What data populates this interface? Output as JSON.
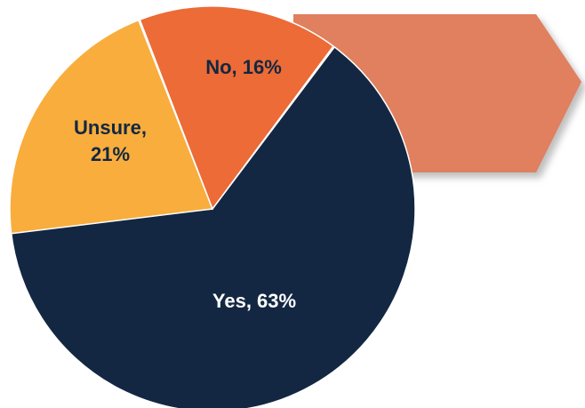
{
  "chart_data": {
    "type": "pie",
    "title": "",
    "slices": [
      {
        "label": "Yes",
        "value": 63,
        "display": [
          "Yes, 63%"
        ],
        "color": "#132742",
        "text_color": "#ffffff"
      },
      {
        "label": "Unsure",
        "value": 21,
        "display": [
          "Unsure,",
          "21%"
        ],
        "color": "#f8ad3d",
        "text_color": "#132742"
      },
      {
        "label": "No",
        "value": 16,
        "display": [
          "No, 16%"
        ],
        "color": "#ec6b36",
        "text_color": "#132742"
      }
    ],
    "unit": "%",
    "slice_border_color": "#ffffff"
  },
  "decoration": {
    "arrow_shape_color": "#e0805f",
    "arrow_shadow_color": "#bbbbbb"
  }
}
